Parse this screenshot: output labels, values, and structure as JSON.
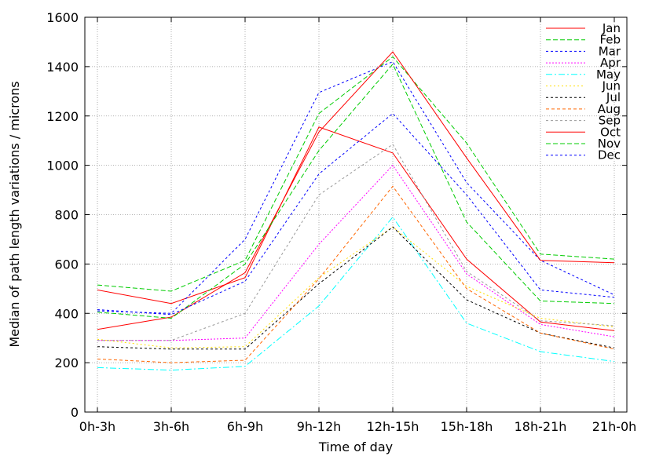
{
  "chart_data": {
    "type": "line",
    "title": "",
    "xlabel": "Time of day",
    "ylabel": "Median of path length variations / microns",
    "categories": [
      "0h-3h",
      "3h-6h",
      "6h-9h",
      "9h-12h",
      "12h-15h",
      "15h-18h",
      "18h-21h",
      "21h-0h"
    ],
    "ylim": [
      0,
      1600
    ],
    "yticks": [
      0,
      200,
      400,
      600,
      800,
      1000,
      1200,
      1400,
      1600
    ],
    "grid": true,
    "legend_position": "top-right",
    "series": [
      {
        "name": "Jan",
        "color": "#ff0000",
        "dash": "solid",
        "values": [
          495,
          440,
          545,
          1155,
          1050,
          620,
          365,
          330
        ]
      },
      {
        "name": "Feb",
        "color": "#00cc00",
        "dash": "6,3",
        "values": [
          515,
          490,
          615,
          1210,
          1440,
          1090,
          640,
          620
        ]
      },
      {
        "name": "Mar",
        "color": "#0000ff",
        "dash": "3,3",
        "values": [
          410,
          400,
          700,
          1295,
          1420,
          930,
          615,
          475
        ]
      },
      {
        "name": "Apr",
        "color": "#ff00ff",
        "dash": "2,2",
        "values": [
          290,
          290,
          300,
          680,
          1000,
          560,
          355,
          305
        ]
      },
      {
        "name": "May",
        "color": "#00ffff",
        "dash": "8,3,2,3",
        "values": [
          180,
          170,
          185,
          430,
          790,
          360,
          245,
          205
        ]
      },
      {
        "name": "Jun",
        "color": "#ffdd00",
        "dash": "2,3",
        "values": [
          295,
          260,
          265,
          545,
          750,
          510,
          380,
          345
        ]
      },
      {
        "name": "Jul",
        "color": "#000000",
        "dash": "3,3",
        "values": [
          265,
          255,
          255,
          520,
          750,
          455,
          320,
          260
        ]
      },
      {
        "name": "Aug",
        "color": "#ff6600",
        "dash": "4,3",
        "values": [
          215,
          200,
          210,
          540,
          915,
          500,
          320,
          255
        ]
      },
      {
        "name": "Sep",
        "color": "#999999",
        "dash": "3,3",
        "values": [
          290,
          290,
          400,
          880,
          1085,
          570,
          370,
          350
        ]
      },
      {
        "name": "Oct",
        "color": "#ff0000",
        "dash": "solid",
        "values": [
          335,
          385,
          565,
          1135,
          1460,
          1030,
          615,
          605
        ]
      },
      {
        "name": "Nov",
        "color": "#00cc00",
        "dash": "6,3",
        "values": [
          405,
          380,
          600,
          1060,
          1410,
          770,
          450,
          440
        ]
      },
      {
        "name": "Dec",
        "color": "#0000ff",
        "dash": "3,3",
        "values": [
          415,
          395,
          530,
          965,
          1210,
          880,
          495,
          465
        ]
      }
    ]
  }
}
